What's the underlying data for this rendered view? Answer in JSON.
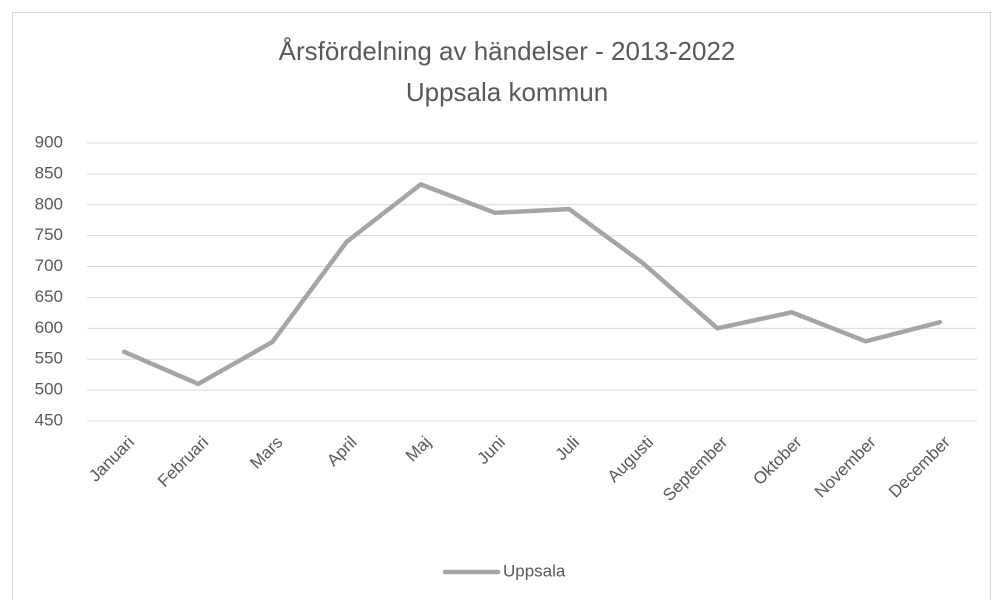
{
  "chart_data": {
    "type": "line",
    "title": "Årsfördelning av händelser - 2013-2022",
    "subtitle": "Uppsala kommun",
    "categories": [
      "Januari",
      "Februari",
      "Mars",
      "April",
      "Maj",
      "Juni",
      "Juli",
      "Augusti",
      "September",
      "Oktober",
      "November",
      "December"
    ],
    "series": [
      {
        "name": "Uppsala",
        "color": "#a5a5a5",
        "values": [
          562,
          510,
          578,
          740,
          833,
          787,
          793,
          705,
          600,
          626,
          579,
          610
        ]
      }
    ],
    "ylim": [
      450,
      900
    ],
    "yticks": [
      450,
      500,
      550,
      600,
      650,
      700,
      750,
      800,
      850,
      900
    ],
    "grid": true,
    "legend": "bottom"
  }
}
